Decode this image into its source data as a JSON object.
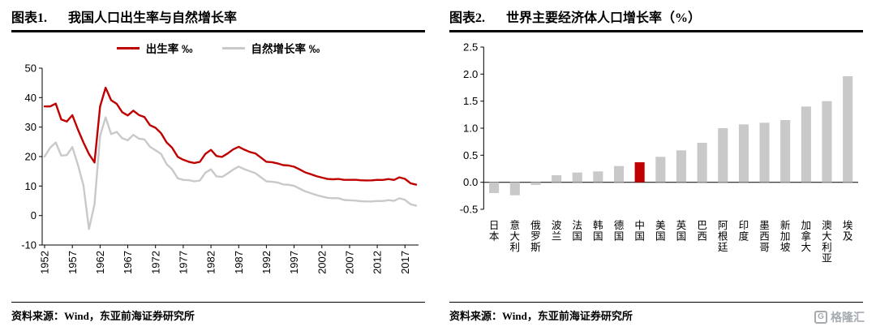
{
  "colors": {
    "red": "#c00000",
    "gray": "#c9c9c9",
    "axis": "#000000"
  },
  "panel1": {
    "label": "图表1.",
    "title": "我国人口出生率与自然增长率",
    "source": "资料来源：Wind，东亚前海证券研究所"
  },
  "panel2": {
    "label": "图表2.",
    "title": "世界主要经济体人口增长率（%）",
    "source": "资料来源：Wind，东亚前海证券研究所"
  },
  "watermark": {
    "icon_letter": "G",
    "text": "格隆汇"
  },
  "chart_data": [
    {
      "type": "line",
      "title": "我国人口出生率与自然增长率",
      "x_start": 1952,
      "x_end": 2019,
      "xticks": [
        1952,
        1957,
        1962,
        1967,
        1972,
        1977,
        1982,
        1987,
        1992,
        1997,
        2002,
        2007,
        2012,
        2017
      ],
      "ylim": [
        -10,
        50
      ],
      "yticks": [
        50,
        40,
        30,
        20,
        10,
        0,
        -10
      ],
      "ytick_decimals": 0,
      "grid": false,
      "legend_position": "top",
      "series": [
        {
          "name": "出生率 ‰",
          "color": "#c00000",
          "values": [
            37.0,
            37.0,
            37.97,
            32.6,
            31.9,
            34.03,
            29.22,
            24.78,
            20.86,
            18.02,
            37.01,
            43.37,
            39.14,
            37.88,
            35.05,
            33.96,
            35.59,
            34.11,
            33.43,
            30.65,
            29.77,
            27.93,
            24.82,
            23.01,
            19.91,
            18.93,
            18.25,
            17.82,
            18.21,
            20.91,
            22.28,
            20.19,
            19.9,
            21.04,
            22.43,
            23.33,
            22.37,
            21.58,
            21.06,
            19.68,
            18.24,
            18.09,
            17.7,
            17.12,
            16.98,
            16.57,
            15.64,
            14.64,
            14.03,
            13.38,
            12.86,
            12.41,
            12.29,
            12.4,
            12.09,
            12.1,
            12.14,
            11.95,
            11.9,
            11.93,
            12.1,
            12.08,
            12.37,
            12.07,
            12.95,
            12.43,
            10.94,
            10.48
          ]
        },
        {
          "name": "自然增长率 ‰",
          "color": "#c9c9c9",
          "values": [
            20.0,
            23.0,
            24.79,
            20.32,
            20.5,
            23.23,
            17.24,
            10.19,
            -4.57,
            3.78,
            26.99,
            33.33,
            27.64,
            28.38,
            26.22,
            25.53,
            27.38,
            26.08,
            25.83,
            23.33,
            22.16,
            20.89,
            17.48,
            15.69,
            12.66,
            12.06,
            12.0,
            11.61,
            11.87,
            14.55,
            15.68,
            13.29,
            13.08,
            14.26,
            15.57,
            16.61,
            15.73,
            15.04,
            14.39,
            12.98,
            11.6,
            11.45,
            11.21,
            10.55,
            10.42,
            10.06,
            9.14,
            8.18,
            7.58,
            6.95,
            6.45,
            6.01,
            5.87,
            5.89,
            5.28,
            5.17,
            5.08,
            4.87,
            4.79,
            4.79,
            4.95,
            4.92,
            5.21,
            4.96,
            5.86,
            5.32,
            3.81,
            3.34
          ]
        }
      ]
    },
    {
      "type": "bar",
      "title": "世界主要经济体人口增长率（%）",
      "categories": [
        "日本",
        "意大利",
        "俄罗斯",
        "波兰",
        "法国",
        "韩国",
        "德国",
        "中国",
        "美国",
        "英国",
        "巴西",
        "阿根廷",
        "印度",
        "墨西哥",
        "新加坡",
        "加拿大",
        "澳大利亚",
        "埃及"
      ],
      "values": [
        -0.2,
        -0.24,
        -0.05,
        0.13,
        0.18,
        0.2,
        0.3,
        0.37,
        0.47,
        0.59,
        0.73,
        1.0,
        1.07,
        1.1,
        1.15,
        1.4,
        1.5,
        1.96
      ],
      "highlight": {
        "index": 7,
        "color": "#c00000"
      },
      "bar_color": "#c9c9c9",
      "ylim": [
        -0.5,
        2.5
      ],
      "yticks": [
        2.5,
        2.0,
        1.5,
        1.0,
        0.5,
        0.0,
        -0.5
      ],
      "ytick_decimals": 1,
      "grid": false,
      "legend_position": "none"
    }
  ]
}
